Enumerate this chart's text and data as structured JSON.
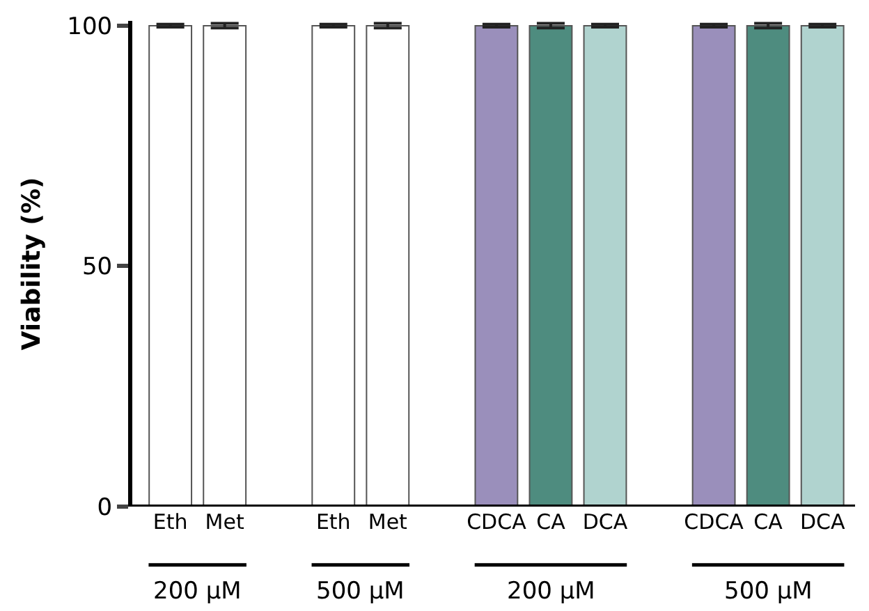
{
  "chart_data": {
    "type": "bar",
    "ylabel": "Viability (%)",
    "categories": [
      "Eth",
      "Met",
      null,
      "Eth",
      "Met",
      null,
      "CDCA",
      "CA",
      "DCA",
      null,
      "CDCA",
      "CA",
      "DCA"
    ],
    "values": [
      100,
      100,
      null,
      100,
      100,
      null,
      100,
      100,
      100,
      null,
      100,
      100,
      100
    ],
    "errors": [
      0.3,
      0.5,
      null,
      0.3,
      0.5,
      null,
      0.3,
      0.5,
      0.3,
      null,
      0.3,
      0.5,
      0.3
    ],
    "colors": [
      "#ffffff",
      "#ffffff",
      null,
      "#ffffff",
      "#ffffff",
      null,
      "#9a8fbb",
      "#4e8c7f",
      "#b0d3cf",
      null,
      "#9a8fbb",
      "#4e8c7f",
      "#b0d3cf"
    ],
    "ylim": [
      0,
      101
    ],
    "yticks": [
      0,
      50,
      100
    ],
    "legend": false,
    "annotations": [
      "200 µM",
      "500 µM",
      "200 µM",
      "500 µM"
    ]
  }
}
